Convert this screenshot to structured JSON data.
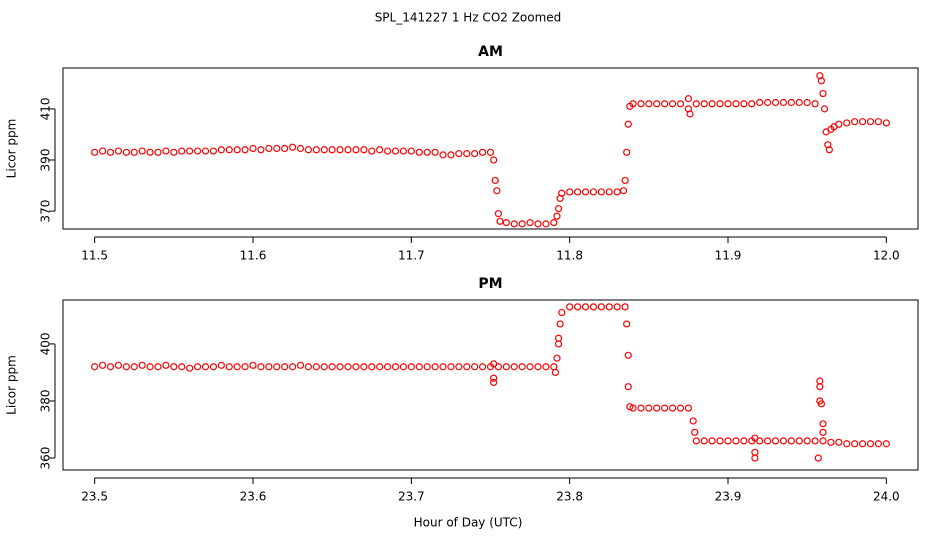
{
  "title": "SPL_141227  1 Hz CO2 Zoomed",
  "xlabel": "Hour of Day (UTC)",
  "chart_data": [
    {
      "type": "scatter",
      "title": "AM",
      "ylabel": "Licor ppm",
      "color": "#ff0000",
      "xlim": [
        11.48,
        12.02
      ],
      "xticks": [
        11.5,
        11.6,
        11.7,
        11.8,
        11.9,
        {
          "value": 12,
          "label": "12.0"
        }
      ],
      "ylim": [
        363,
        426
      ],
      "yticks": [
        370,
        390,
        410
      ],
      "x": [
        11.5,
        11.505,
        11.51,
        11.515,
        11.52,
        11.525,
        11.53,
        11.535,
        11.54,
        11.545,
        11.55,
        11.555,
        11.56,
        11.565,
        11.57,
        11.575,
        11.58,
        11.585,
        11.59,
        11.595,
        11.6,
        11.605,
        11.61,
        11.615,
        11.62,
        11.625,
        11.63,
        11.635,
        11.64,
        11.645,
        11.65,
        11.655,
        11.66,
        11.665,
        11.67,
        11.675,
        11.68,
        11.685,
        11.69,
        11.695,
        11.7,
        11.705,
        11.71,
        11.715,
        11.72,
        11.725,
        11.73,
        11.735,
        11.74,
        11.745,
        11.75,
        11.752,
        11.753,
        11.754,
        11.755,
        11.756,
        11.76,
        11.765,
        11.77,
        11.775,
        11.78,
        11.785,
        11.79,
        11.792,
        11.793,
        11.794,
        11.795,
        11.8,
        11.805,
        11.81,
        11.815,
        11.82,
        11.825,
        11.83,
        11.834,
        11.835,
        11.836,
        11.837,
        11.838,
        11.84,
        11.845,
        11.85,
        11.855,
        11.86,
        11.865,
        11.87,
        11.875,
        11.876,
        11.875,
        11.88,
        11.885,
        11.89,
        11.895,
        11.9,
        11.905,
        11.91,
        11.915,
        11.92,
        11.925,
        11.93,
        11.935,
        11.94,
        11.945,
        11.95,
        11.955,
        11.958,
        11.959,
        11.96,
        11.961,
        11.962,
        11.963,
        11.964,
        11.965,
        11.967,
        11.97,
        11.975,
        11.98,
        11.985,
        11.99,
        11.995,
        12.0
      ],
      "values": [
        393,
        393.5,
        393,
        393.5,
        393,
        393,
        393.5,
        393,
        393,
        393.5,
        393,
        393.5,
        393.5,
        393.5,
        393.5,
        393.5,
        394,
        394,
        394,
        394,
        394.5,
        394,
        394.5,
        394.5,
        394.5,
        395,
        394.5,
        394,
        394,
        394,
        394,
        394,
        394,
        394,
        394,
        393.5,
        394,
        393.5,
        393.5,
        393.5,
        393.5,
        393,
        393,
        393,
        392,
        392,
        392.5,
        392.5,
        392.5,
        393,
        393,
        390,
        382,
        378,
        369,
        366,
        365.5,
        365,
        365,
        365.5,
        365,
        365,
        365.5,
        368,
        371,
        375,
        377,
        377.5,
        377.5,
        377.5,
        377.5,
        377.5,
        377.5,
        377.5,
        378,
        382,
        393,
        404,
        411,
        412,
        412,
        412,
        412,
        412,
        412,
        412,
        414,
        408,
        410,
        412,
        412,
        412,
        412,
        412,
        412,
        412,
        412,
        412.5,
        412.5,
        412.5,
        412.5,
        412.5,
        412.5,
        412.5,
        412,
        423,
        421,
        416,
        410,
        401,
        396,
        394,
        402,
        403,
        404,
        404.5,
        405,
        405,
        405,
        405,
        404.5
      ]
    },
    {
      "type": "scatter",
      "title": "PM",
      "ylabel": "Licor ppm",
      "color": "#ff0000",
      "xlim": [
        23.48,
        24.02
      ],
      "xticks": [
        23.5,
        23.6,
        23.7,
        23.8,
        23.9,
        {
          "value": 24,
          "label": "24.0"
        }
      ],
      "ylim": [
        355.8,
        415.4
      ],
      "yticks": [
        360,
        380,
        400
      ],
      "x": [
        23.5,
        23.505,
        23.51,
        23.515,
        23.52,
        23.525,
        23.53,
        23.535,
        23.54,
        23.545,
        23.55,
        23.555,
        23.56,
        23.565,
        23.57,
        23.575,
        23.58,
        23.585,
        23.59,
        23.595,
        23.6,
        23.605,
        23.61,
        23.615,
        23.62,
        23.625,
        23.63,
        23.635,
        23.64,
        23.645,
        23.65,
        23.655,
        23.66,
        23.665,
        23.67,
        23.675,
        23.68,
        23.685,
        23.69,
        23.695,
        23.7,
        23.705,
        23.71,
        23.715,
        23.72,
        23.725,
        23.73,
        23.735,
        23.74,
        23.745,
        23.75,
        23.752,
        23.752,
        23.752,
        23.755,
        23.76,
        23.765,
        23.77,
        23.775,
        23.78,
        23.785,
        23.79,
        23.791,
        23.792,
        23.793,
        23.793,
        23.794,
        23.795,
        23.8,
        23.805,
        23.81,
        23.815,
        23.82,
        23.825,
        23.83,
        23.835,
        23.836,
        23.837,
        23.837,
        23.838,
        23.84,
        23.845,
        23.85,
        23.855,
        23.86,
        23.865,
        23.87,
        23.875,
        23.878,
        23.879,
        23.88,
        23.885,
        23.89,
        23.895,
        23.9,
        23.905,
        23.91,
        23.915,
        23.917,
        23.917,
        23.917,
        23.92,
        23.925,
        23.93,
        23.935,
        23.94,
        23.945,
        23.95,
        23.955,
        23.958,
        23.958,
        23.958,
        23.959,
        23.96,
        23.96,
        23.957,
        23.96,
        23.965,
        23.97,
        23.975,
        23.98,
        23.985,
        23.99,
        23.995,
        24.0
      ],
      "values": [
        392,
        392.5,
        392,
        392.5,
        392,
        392,
        392.5,
        392,
        392,
        392.5,
        392,
        392,
        391.5,
        392,
        392,
        392,
        392.5,
        392,
        392,
        392,
        392.5,
        392,
        392,
        392,
        392,
        392,
        392.5,
        392,
        392,
        392,
        392,
        392,
        392,
        392,
        392,
        392,
        392,
        392,
        392,
        392,
        392,
        392,
        392,
        392,
        392,
        392,
        392,
        392,
        392,
        392,
        392,
        393,
        388,
        386.5,
        392,
        392,
        392,
        392,
        392,
        392,
        392,
        392,
        390,
        395,
        400,
        402,
        407,
        411,
        413,
        413,
        413,
        413,
        413,
        413,
        413,
        413,
        407,
        396,
        385,
        378,
        377.5,
        377.5,
        377.5,
        377.5,
        377.5,
        377.5,
        377.5,
        377.5,
        373,
        369,
        366,
        366,
        366,
        366,
        366,
        366,
        366,
        366,
        367,
        362,
        360,
        366,
        366,
        366,
        366,
        366,
        366,
        366,
        366,
        387,
        385,
        380,
        379,
        372,
        369,
        360,
        366,
        365.5,
        365.5,
        365,
        365,
        365,
        365,
        365,
        365
      ]
    }
  ]
}
